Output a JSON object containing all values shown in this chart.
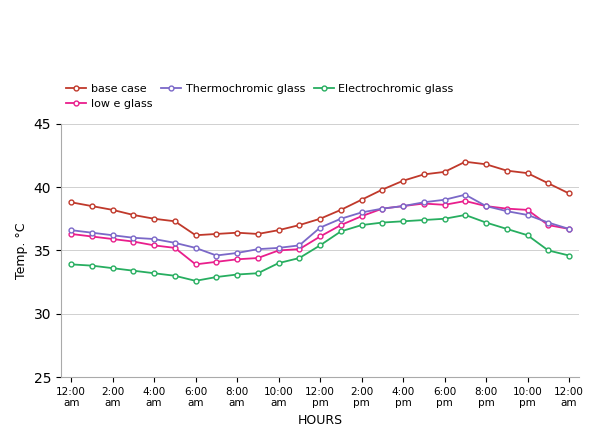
{
  "hours_labels": [
    "12:00\nam",
    "2:00\nam",
    "4:00\nam",
    "6:00\nam",
    "8:00\nam",
    "10:00\nam",
    "12:00\npm",
    "2:00\npm",
    "4:00\npm",
    "6:00\npm",
    "8:00\npm",
    "10:00\npm",
    "12:00\nam"
  ],
  "tick_positions": [
    0,
    2,
    4,
    6,
    8,
    10,
    12,
    14,
    16,
    18,
    20,
    22,
    24
  ],
  "base_case": [
    38.8,
    38.5,
    38.2,
    37.8,
    37.5,
    37.3,
    36.2,
    36.3,
    36.4,
    36.3,
    36.6,
    37.0,
    37.5,
    38.2,
    39.0,
    39.8,
    40.5,
    41.0,
    41.2,
    42.0,
    41.8,
    41.3,
    41.1,
    40.3,
    39.5
  ],
  "low_e_glass": [
    36.3,
    36.1,
    35.9,
    35.7,
    35.4,
    35.2,
    33.9,
    34.1,
    34.3,
    34.4,
    35.0,
    35.1,
    36.1,
    37.0,
    37.7,
    38.3,
    38.5,
    38.7,
    38.6,
    38.9,
    38.5,
    38.3,
    38.2,
    37.0,
    36.7
  ],
  "thermochromic": [
    36.6,
    36.4,
    36.2,
    36.0,
    35.9,
    35.6,
    35.2,
    34.6,
    34.8,
    35.1,
    35.2,
    35.4,
    36.8,
    37.5,
    38.0,
    38.3,
    38.5,
    38.8,
    39.0,
    39.4,
    38.5,
    38.1,
    37.8,
    37.2,
    36.7
  ],
  "electrochromic": [
    33.9,
    33.8,
    33.6,
    33.4,
    33.2,
    33.0,
    32.6,
    32.9,
    33.1,
    33.2,
    34.0,
    34.4,
    35.4,
    36.5,
    37.0,
    37.2,
    37.3,
    37.4,
    37.5,
    37.8,
    37.2,
    36.7,
    36.2,
    35.0,
    34.6
  ],
  "base_case_color": "#c0392b",
  "low_e_glass_color": "#e91e8c",
  "thermochromic_color": "#7b68c8",
  "electrochromic_color": "#27ae60",
  "ylabel": "Temp. °C",
  "xlabel": "HOURS",
  "ylim": [
    25,
    45
  ],
  "yticks": [
    25,
    30,
    35,
    40,
    45
  ],
  "background_color": "#ffffff"
}
